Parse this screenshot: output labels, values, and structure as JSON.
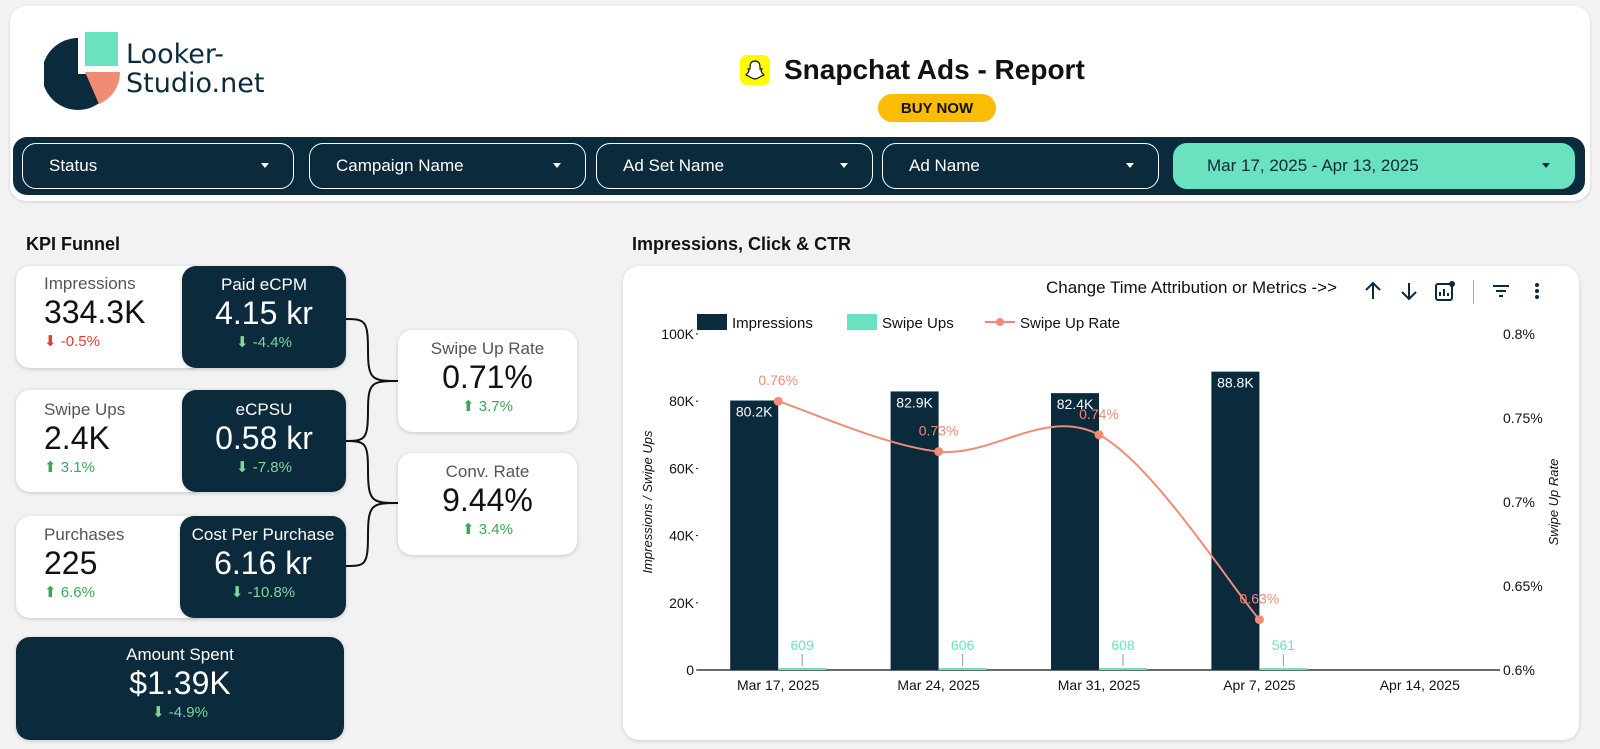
{
  "header": {
    "logo_line1": "Looker-",
    "logo_line2": "Studio.net",
    "title": "Snapchat Ads - Report",
    "buy_label": "BUY NOW"
  },
  "filters": [
    {
      "label": "Status"
    },
    {
      "label": "Campaign Name"
    },
    {
      "label": "Ad Set Name"
    },
    {
      "label": "Ad Name"
    },
    {
      "label": "Mar 17, 2025 - Apr 13, 2025"
    }
  ],
  "kpi": {
    "section_title": "KPI Funnel",
    "impressions": {
      "label": "Impressions",
      "value": "334.3K",
      "delta": "-0.5%"
    },
    "paid_ecpm": {
      "label": "Paid eCPM",
      "value": "4.15 kr",
      "delta": "-4.4%"
    },
    "swipe_ups": {
      "label": "Swipe Ups",
      "value": "2.4K",
      "delta": "3.1%"
    },
    "ecpsu": {
      "label": "eCPSU",
      "value": "0.58 kr",
      "delta": "-7.8%"
    },
    "purchases": {
      "label": "Purchases",
      "value": "225",
      "delta": "6.6%"
    },
    "cost_per_purchase": {
      "label": "Cost Per Purchase",
      "value": "6.16 kr",
      "delta": "-10.8%"
    },
    "swipe_up_rate": {
      "label": "Swipe Up Rate",
      "value": "0.71%",
      "delta": "3.7%"
    },
    "conv_rate": {
      "label": "Conv. Rate",
      "value": "9.44%",
      "delta": "3.4%"
    },
    "amount_spent": {
      "label": "Amount Spent",
      "value": "$1.39K",
      "delta": "-4.9%"
    }
  },
  "chart_section_title": "Impressions, Click & CTR",
  "toolbar": {
    "text": "Change Time Attribution or Metrics ->>",
    "icons": [
      "arrow-up-icon",
      "arrow-down-icon",
      "chart-settings-icon",
      "filter-icon",
      "more-vert-icon"
    ]
  },
  "colors": {
    "navy": "#0b2a3c",
    "mint": "#6ae2bf",
    "salmon": "#f28b74",
    "buy": "#fbbc04",
    "snap": "#fffc00"
  },
  "chart_data": {
    "type": "bar",
    "categories": [
      "Mar 17, 2025",
      "Mar 24, 2025",
      "Mar 31, 2025",
      "Apr 7, 2025",
      "Apr 14, 2025"
    ],
    "series": [
      {
        "name": "Impressions",
        "type": "bar",
        "axis": "left",
        "values": [
          80200,
          82900,
          82400,
          88800,
          null
        ],
        "labels": [
          "80.2K",
          "82.9K",
          "82.4K",
          "88.8K",
          ""
        ]
      },
      {
        "name": "Swipe Ups",
        "type": "bar",
        "axis": "left",
        "values": [
          609,
          606,
          608,
          561,
          null
        ],
        "labels": [
          "609",
          "606",
          "608",
          "561",
          ""
        ]
      },
      {
        "name": "Swipe Up Rate",
        "type": "line",
        "axis": "right",
        "values": [
          0.76,
          0.73,
          0.74,
          0.63,
          null
        ],
        "labels": [
          "0.76%",
          "0.73%",
          "0.74%",
          "0.63%",
          ""
        ]
      }
    ],
    "ylabel": "Impressions / Swipe Ups",
    "y2label": "Swipe Up Rate",
    "ylim": [
      0,
      100000
    ],
    "y2lim": [
      0.6,
      0.8
    ],
    "yticks": [
      "0",
      "20K",
      "40K",
      "60K",
      "80K",
      "100K"
    ],
    "y2ticks": [
      "0.6%",
      "0.65%",
      "0.7%",
      "0.75%",
      "0.8%"
    ],
    "legend": "top-left",
    "grid": false
  }
}
